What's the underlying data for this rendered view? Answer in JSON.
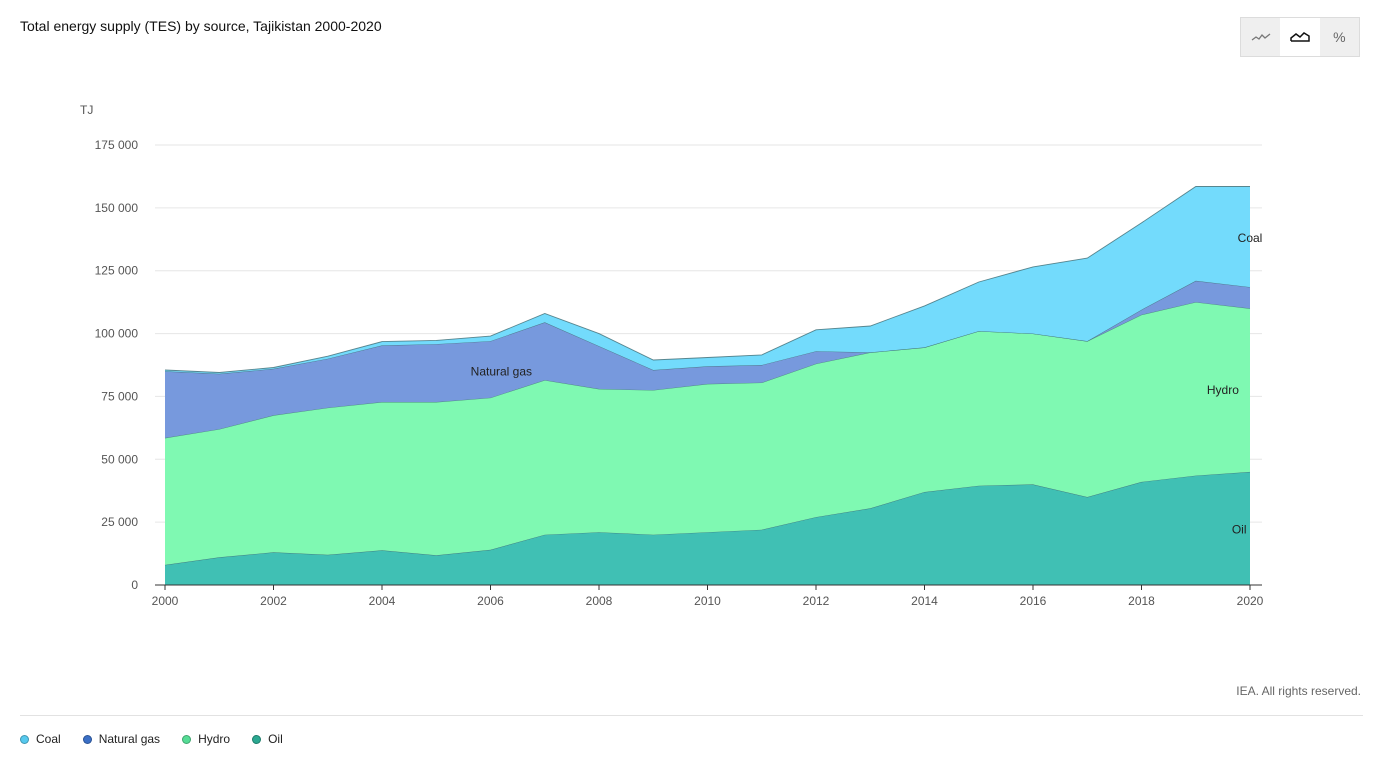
{
  "title": "Total energy supply (TES) by source, Tajikistan 2000-2020",
  "toolbar": {
    "buttons": [
      {
        "icon": "line-chart-icon",
        "active": false
      },
      {
        "icon": "area-chart-icon",
        "active": true
      },
      {
        "icon": "percent-icon",
        "label": "%",
        "active": false
      }
    ]
  },
  "credit": "IEA. All rights reserved.",
  "legend": [
    {
      "label": "Coal",
      "color": "#56c9ee"
    },
    {
      "label": "Natural gas",
      "color": "#3a6fc6"
    },
    {
      "label": "Hydro",
      "color": "#55dc95"
    },
    {
      "label": "Oil",
      "color": "#2aa891"
    }
  ],
  "chart_data": {
    "type": "area",
    "stacked": true,
    "ylabel": "TJ",
    "ylim": [
      0,
      175000
    ],
    "yticks": [
      0,
      25000,
      50000,
      75000,
      100000,
      125000,
      150000,
      175000
    ],
    "ytick_labels": [
      "0",
      "25 000",
      "50 000",
      "75 000",
      "100 000",
      "125 000",
      "150 000",
      "175 000"
    ],
    "xticks": [
      2000,
      2002,
      2004,
      2006,
      2008,
      2010,
      2012,
      2014,
      2016,
      2018,
      2020
    ],
    "x": [
      2000,
      2001,
      2002,
      2003,
      2004,
      2005,
      2006,
      2007,
      2008,
      2009,
      2010,
      2011,
      2012,
      2013,
      2014,
      2015,
      2016,
      2017,
      2018,
      2019,
      2020
    ],
    "grid": true,
    "series": [
      {
        "name": "Oil",
        "color": "#40c0b4",
        "label_at": [
          2019.8,
          22000
        ],
        "values": [
          8000,
          11000,
          13000,
          12000,
          13800,
          11800,
          14000,
          20000,
          21000,
          20000,
          21000,
          22000,
          27000,
          30500,
          37000,
          39500,
          40000,
          35000,
          41000,
          43500,
          45000
        ]
      },
      {
        "name": "Hydro",
        "color": "#7ff9b2",
        "label_at": [
          2019.5,
          77500
        ],
        "values": [
          50500,
          51000,
          54500,
          58500,
          59000,
          61000,
          60500,
          61500,
          57000,
          57500,
          59000,
          58500,
          61000,
          62000,
          57500,
          61500,
          60000,
          62000,
          66500,
          69000,
          65000
        ]
      },
      {
        "name": "Natural gas",
        "color": "#7799dd",
        "label_at": [
          2006.2,
          85000
        ],
        "values": [
          26500,
          22000,
          18500,
          19500,
          22500,
          23000,
          22500,
          23000,
          17000,
          8000,
          7000,
          7000,
          5000,
          0,
          0,
          0,
          0,
          0,
          2000,
          8500,
          8500
        ]
      },
      {
        "name": "Coal",
        "color": "#73dbfc",
        "label_at": [
          2020.0,
          138000
        ],
        "values": [
          500,
          500,
          500,
          1000,
          1500,
          1500,
          2000,
          3500,
          5000,
          4000,
          3500,
          4000,
          8500,
          10500,
          16500,
          19500,
          26500,
          33000,
          34500,
          37500,
          40000
        ]
      }
    ]
  }
}
